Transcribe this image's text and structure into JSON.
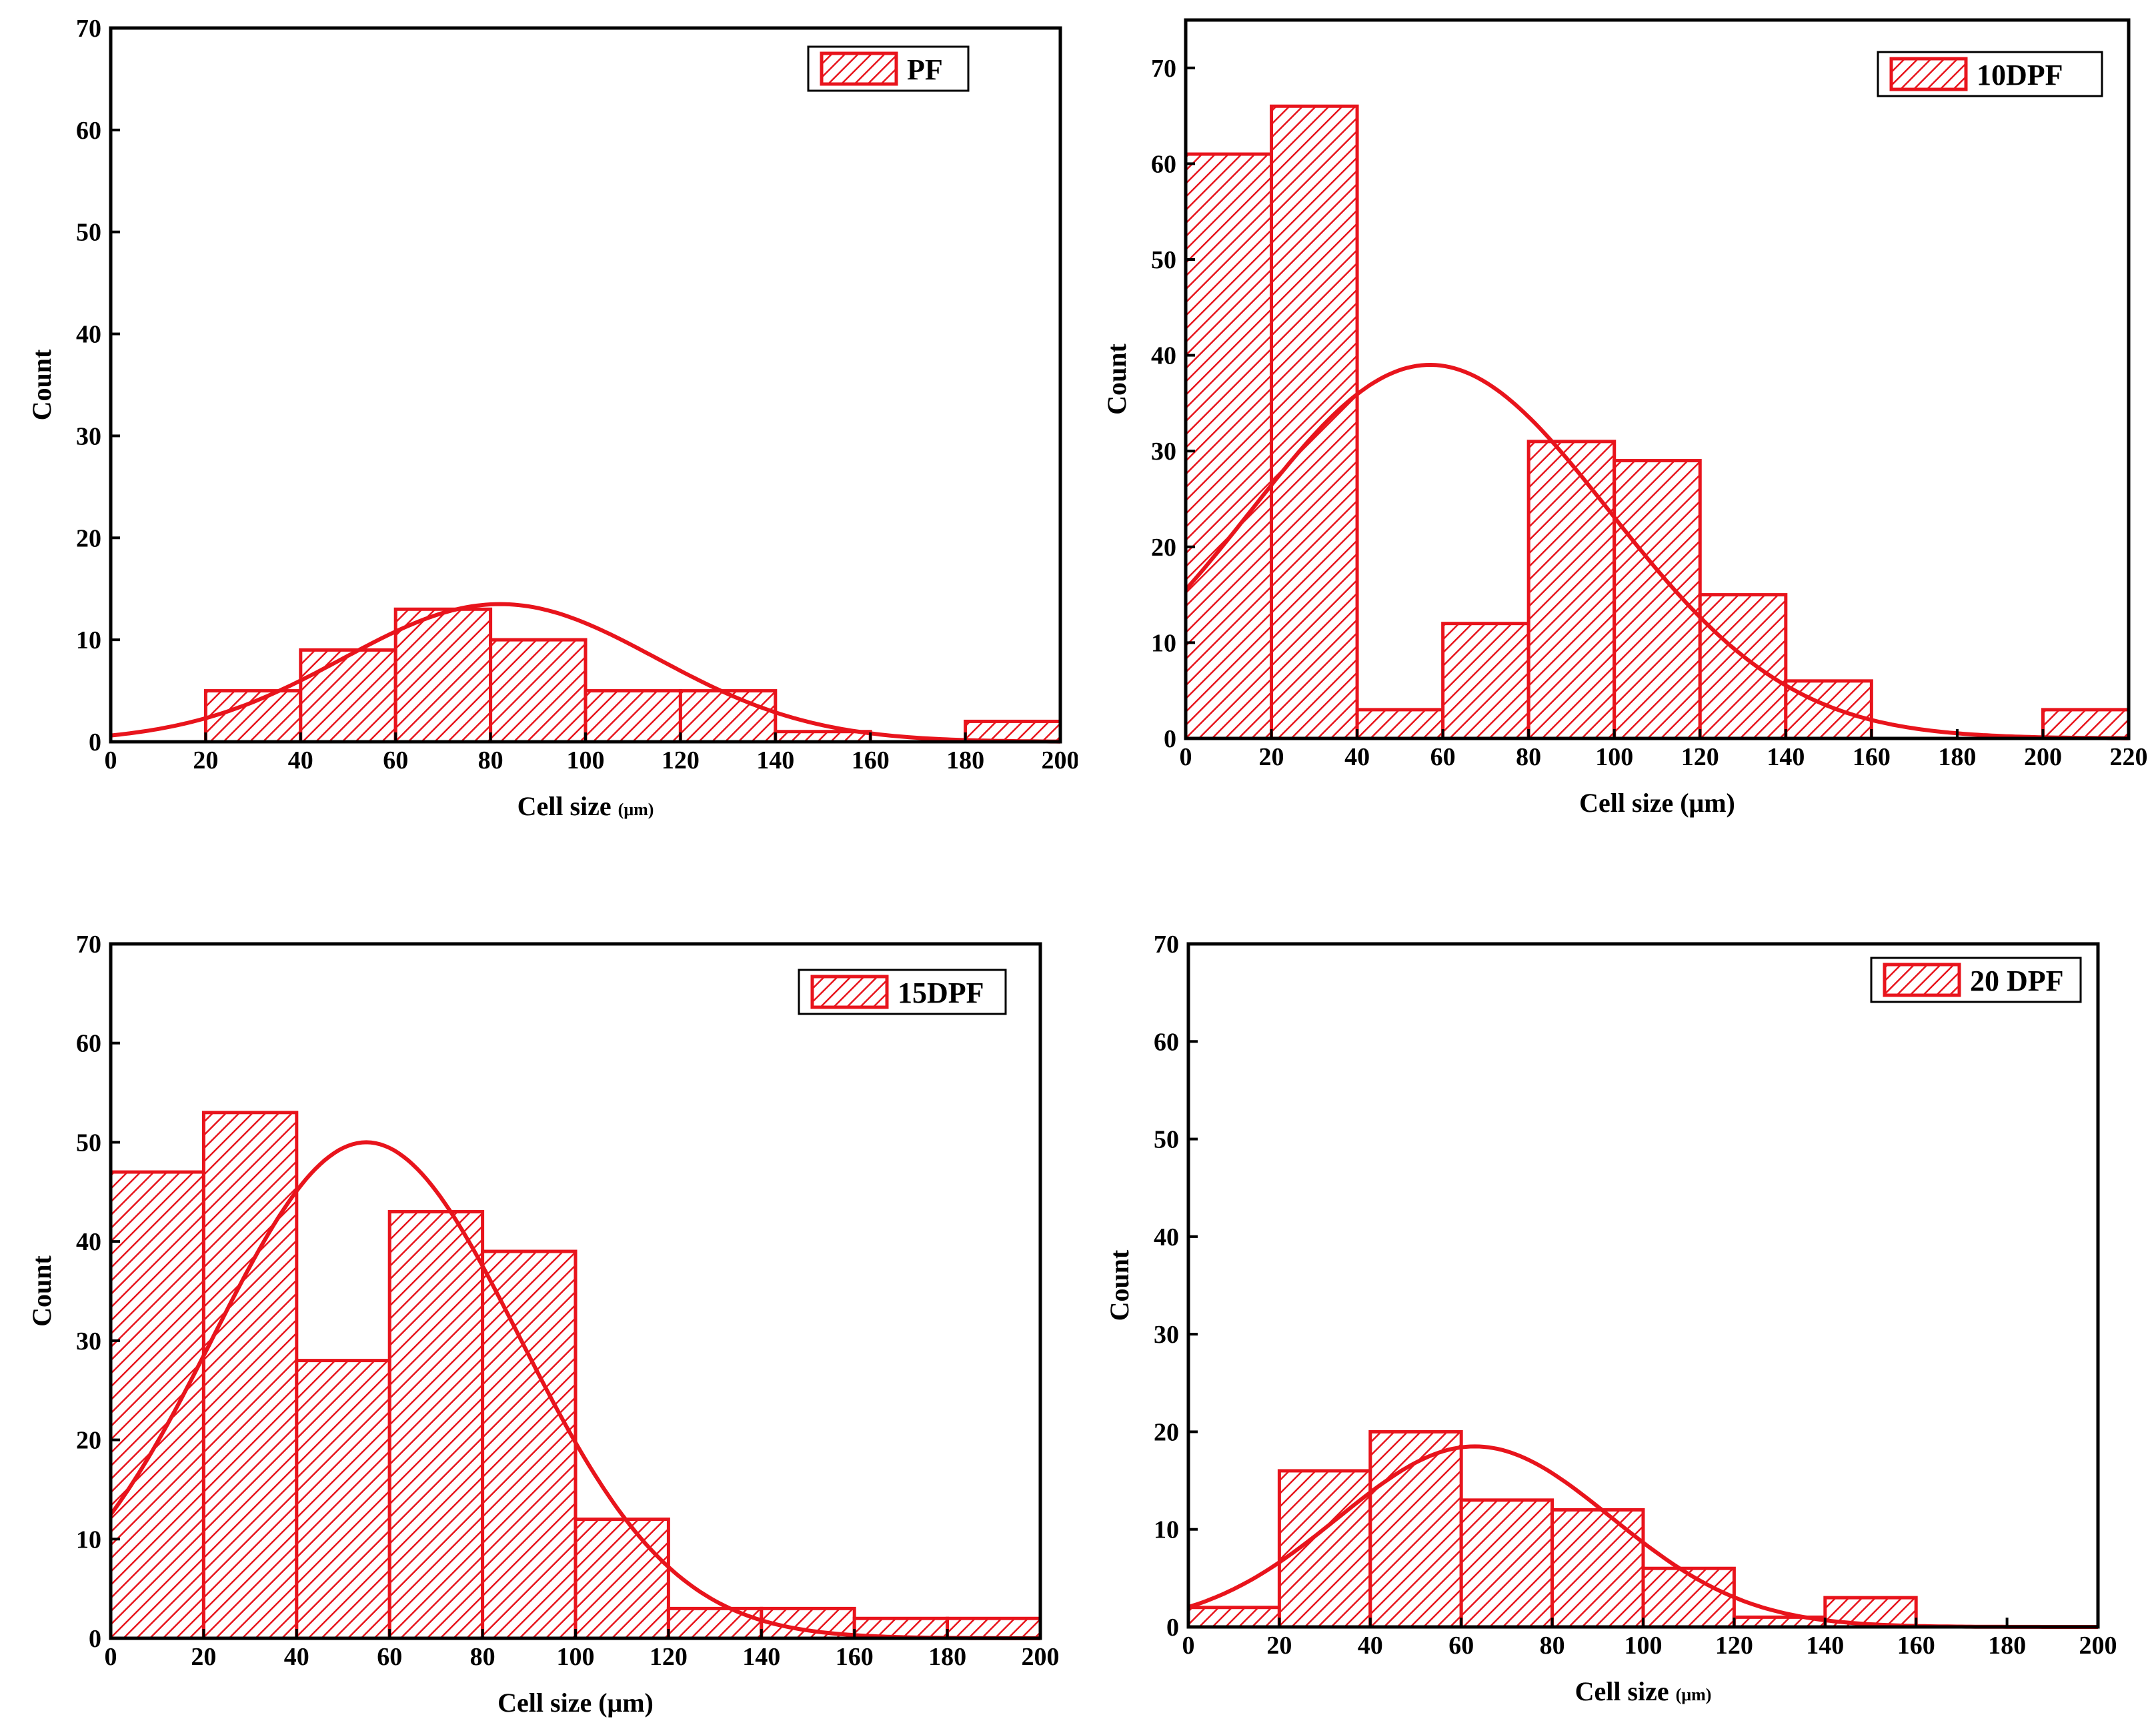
{
  "chart_data": [
    {
      "type": "bar",
      "id": "PF",
      "legend": "PF",
      "xlabel": "Cell size",
      "xunit": "(μm)",
      "ylabel": "Count",
      "xlim": [
        0,
        200
      ],
      "ylim": [
        0,
        70
      ],
      "xticks": [
        "0",
        "20",
        "40",
        "60",
        "80",
        "100",
        "120",
        "140",
        "160",
        "180",
        "200"
      ],
      "yticks": [
        "0",
        "10",
        "20",
        "30",
        "40",
        "50",
        "60",
        "70"
      ],
      "bins": [
        [
          20,
          40
        ],
        [
          40,
          60
        ],
        [
          60,
          80
        ],
        [
          80,
          100
        ],
        [
          100,
          120
        ],
        [
          120,
          140
        ],
        [
          140,
          160
        ],
        [
          180,
          200
        ]
      ],
      "values": [
        5,
        9,
        13,
        10,
        5,
        5,
        1,
        2
      ],
      "fit": {
        "type": "gaussian",
        "mean": 82,
        "sd": 33,
        "peak": 13.5
      },
      "color": "#e8141c"
    },
    {
      "type": "bar",
      "id": "10DPF",
      "legend": "10DPF",
      "xlabel": "Cell size",
      "xunit": "(μm)",
      "ylabel": "Count",
      "xlim": [
        0,
        220
      ],
      "ylim": [
        0,
        75
      ],
      "xticks": [
        "0",
        "20",
        "40",
        "60",
        "80",
        "100",
        "120",
        "140",
        "160",
        "180",
        "200",
        "220"
      ],
      "yticks": [
        "0",
        "10",
        "20",
        "30",
        "40",
        "50",
        "60",
        "70"
      ],
      "bins": [
        [
          0,
          20
        ],
        [
          20,
          40
        ],
        [
          40,
          60
        ],
        [
          60,
          80
        ],
        [
          80,
          100
        ],
        [
          100,
          120
        ],
        [
          120,
          140
        ],
        [
          140,
          160
        ],
        [
          200,
          220
        ]
      ],
      "values": [
        61,
        66,
        3,
        12,
        31,
        29,
        15,
        6,
        3
      ],
      "fit": {
        "type": "gaussian",
        "mean": 57,
        "sd": 42,
        "peak": 39
      },
      "color": "#e8141c"
    },
    {
      "type": "bar",
      "id": "15DPF",
      "legend": "15DPF",
      "xlabel": "Cell size",
      "xunit": "(μm)",
      "ylabel": "Count",
      "xlim": [
        0,
        200
      ],
      "ylim": [
        0,
        70
      ],
      "xticks": [
        "0",
        "20",
        "40",
        "60",
        "80",
        "100",
        "120",
        "140",
        "160",
        "180",
        "200"
      ],
      "yticks": [
        "0",
        "10",
        "20",
        "30",
        "40",
        "50",
        "60",
        "70"
      ],
      "bins": [
        [
          0,
          20
        ],
        [
          20,
          40
        ],
        [
          40,
          60
        ],
        [
          60,
          80
        ],
        [
          80,
          100
        ],
        [
          100,
          120
        ],
        [
          120,
          140
        ],
        [
          140,
          160
        ],
        [
          160,
          180
        ],
        [
          180,
          200
        ]
      ],
      "values": [
        47,
        53,
        28,
        43,
        39,
        12,
        3,
        3,
        2,
        2
      ],
      "fit": {
        "type": "gaussian",
        "mean": 55,
        "sd": 33,
        "peak": 50
      },
      "color": "#e8141c"
    },
    {
      "type": "bar",
      "id": "20DPF",
      "legend": "20 DPF",
      "xlabel": "Cell size",
      "xunit": "(μm)",
      "ylabel": "Count",
      "xlim": [
        0,
        200
      ],
      "ylim": [
        0,
        70
      ],
      "xticks": [
        "0",
        "20",
        "40",
        "60",
        "80",
        "100",
        "120",
        "140",
        "160",
        "180",
        "200"
      ],
      "yticks": [
        "0",
        "10",
        "20",
        "30",
        "40",
        "50",
        "60",
        "70"
      ],
      "bins": [
        [
          0,
          20
        ],
        [
          20,
          40
        ],
        [
          40,
          60
        ],
        [
          60,
          80
        ],
        [
          80,
          100
        ],
        [
          100,
          120
        ],
        [
          120,
          140
        ],
        [
          140,
          160
        ]
      ],
      "values": [
        2,
        16,
        20,
        13,
        12,
        6,
        1,
        3
      ],
      "fit": {
        "type": "gaussian",
        "mean": 63,
        "sd": 30,
        "peak": 18.5
      },
      "color": "#e8141c"
    }
  ]
}
